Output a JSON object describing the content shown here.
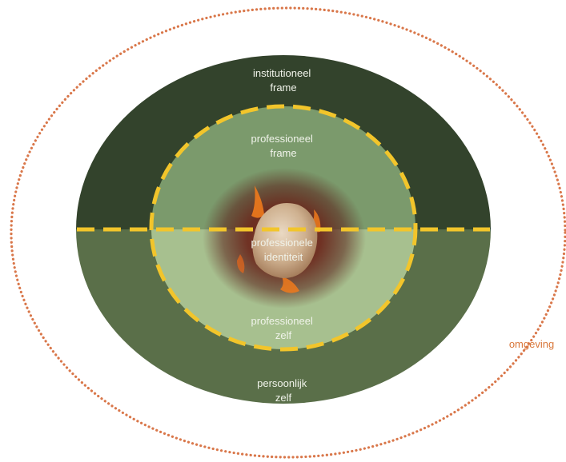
{
  "labels": {
    "institutional_frame": [
      "institutioneel",
      "frame"
    ],
    "professional_frame": [
      "professioneel",
      "frame"
    ],
    "professional_identity": [
      "professionele",
      "identiteit"
    ],
    "professional_self": [
      "professioneel",
      "zelf"
    ],
    "personal_self": [
      "persoonlijk",
      "zelf"
    ],
    "environment": "omgeving"
  },
  "colors": {
    "outer_top": "#33432c",
    "outer_bottom": "#5a6f49",
    "inner_top": "#7b9a6c",
    "inner_bottom": "#a7c08f",
    "dashed_line": "#f2c52b",
    "dotted_ellipse": "#d9774a",
    "environment_text": "#d9773a",
    "label_text": "#f0f3ea",
    "core_glow": "#5a1d18",
    "flame": "#f07a1c",
    "nucleus": "#d9c3a6"
  }
}
